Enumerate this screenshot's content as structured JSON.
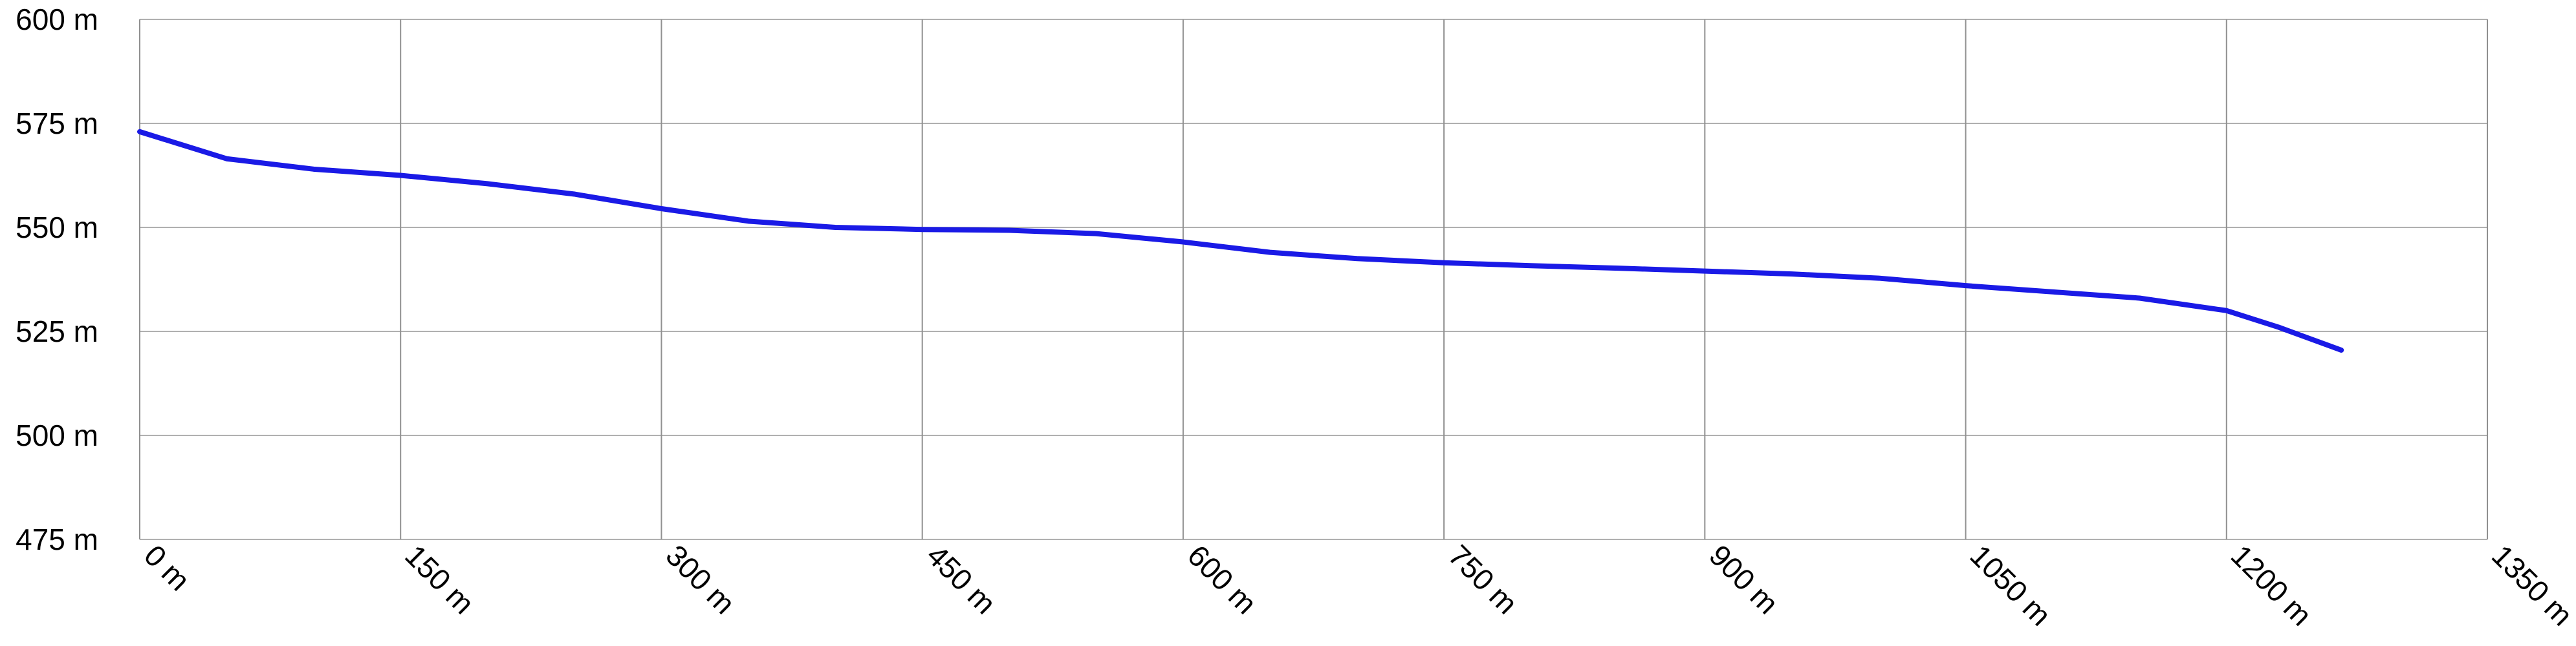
{
  "chart_data": {
    "type": "line",
    "x": [
      0,
      50,
      100,
      150,
      200,
      250,
      300,
      350,
      400,
      450,
      500,
      550,
      600,
      650,
      700,
      750,
      800,
      850,
      900,
      950,
      1000,
      1050,
      1100,
      1150,
      1200,
      1230,
      1266
    ],
    "series": [
      {
        "color": "#1a1ae6",
        "values": [
          573,
          566.5,
          564,
          562.5,
          560.5,
          558,
          554.5,
          551.5,
          550,
          549.5,
          549.3,
          548.5,
          546.5,
          544,
          542.5,
          541.5,
          540.8,
          540.2,
          539.5,
          538.8,
          537.8,
          536,
          534.5,
          533,
          530,
          526,
          520.5
        ]
      }
    ],
    "xlim": [
      0,
      1350
    ],
    "xticks": [
      {
        "value": 0,
        "label": "0 m"
      },
      {
        "value": 150,
        "label": "150 m"
      },
      {
        "value": 300,
        "label": "300 m"
      },
      {
        "value": 450,
        "label": "450 m"
      },
      {
        "value": 600,
        "label": "600 m"
      },
      {
        "value": 750,
        "label": "750 m"
      },
      {
        "value": 900,
        "label": "900 m"
      },
      {
        "value": 1050,
        "label": "1050 m"
      },
      {
        "value": 1200,
        "label": "1200 m"
      },
      {
        "value": 1350,
        "label": "1350 m"
      }
    ],
    "ylim": [
      475,
      600
    ],
    "yticks": [
      {
        "value": 475,
        "label": "475 m"
      },
      {
        "value": 500,
        "label": "500 m"
      },
      {
        "value": 525,
        "label": "525 m"
      },
      {
        "value": 550,
        "label": "550 m"
      },
      {
        "value": 575,
        "label": "575 m"
      },
      {
        "value": 600,
        "label": "600 m"
      }
    ],
    "grid": true
  }
}
